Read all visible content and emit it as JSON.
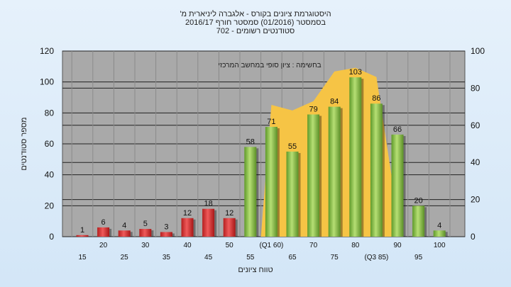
{
  "chart_data": {
    "type": "bar",
    "title_lines": [
      "'היסטוגרמת ציונים בקורס - אלגברה ליניארית מ",
      "בסמסטר  (01/2016)  סמסטר חורף  2016/17",
      "סטודנטים רשומים - 702"
    ],
    "annotation": "בחשימה : ציון סופי במחשב המרכזי",
    "ylabel": "מספר סטודנטים",
    "xlabel": "טווח ציונים",
    "ylim": [
      0,
      120
    ],
    "y_ticks": [
      0,
      20,
      40,
      60,
      80,
      100,
      120
    ],
    "y2lim": [
      0,
      100
    ],
    "y2_ticks": [
      0,
      20,
      40,
      60,
      80,
      100
    ],
    "categories": [
      "15",
      "20",
      "25",
      "30",
      "35",
      "40",
      "45",
      "50",
      "55",
      "60",
      "65",
      "70",
      "75",
      "80",
      "85",
      "90",
      "95",
      "100"
    ],
    "x_tick_labels": [
      "15",
      "20",
      "25",
      "30",
      "35",
      "40",
      "45",
      "50",
      "55",
      "(Q1 60)",
      "65",
      "70",
      "75",
      "80",
      "(Q3 85)",
      "90",
      "95",
      "100"
    ],
    "values": [
      1,
      6,
      4,
      5,
      3,
      12,
      18,
      12,
      58,
      71,
      55,
      79,
      84,
      103,
      86,
      66,
      20,
      4
    ],
    "pass_threshold_category": "55",
    "colors": {
      "fail_bar": "#e03c3c",
      "pass_bar": "#8cc44a",
      "area": "#f6c445",
      "plot_bg": "#a9a9a9",
      "grid": "#222222"
    },
    "area_series": {
      "x": [
        "60",
        "65",
        "70",
        "75",
        "80",
        "85",
        "90"
      ],
      "values": [
        71,
        68,
        73,
        89,
        91,
        86,
        12
      ]
    },
    "grid": true
  }
}
